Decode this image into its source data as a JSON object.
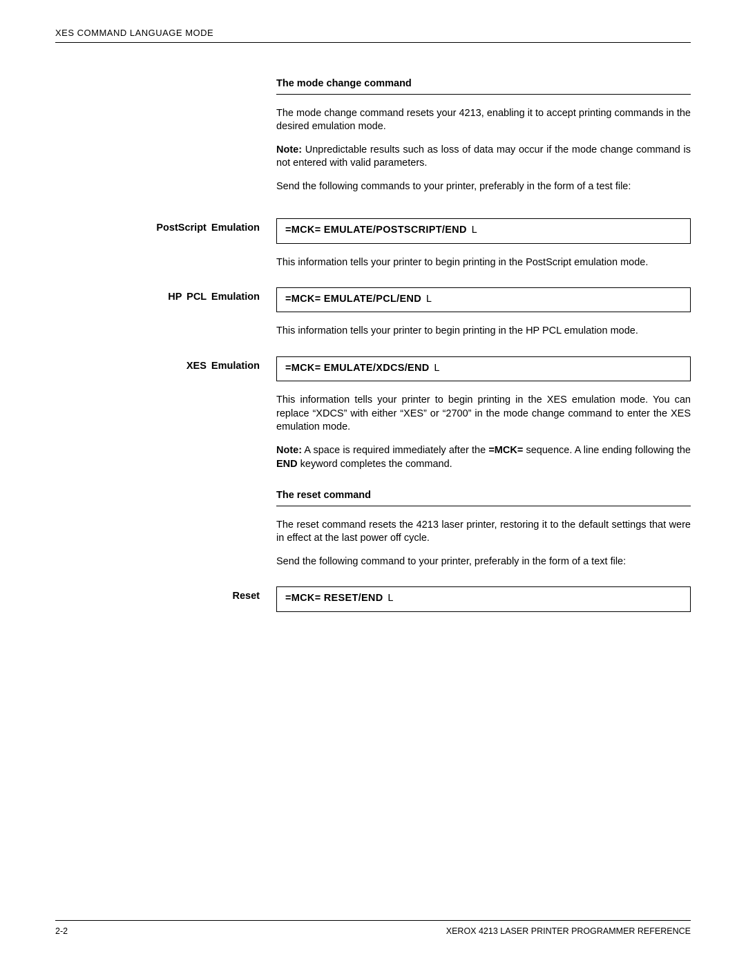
{
  "header": {
    "running_head": "XES COMMAND LANGUAGE MODE"
  },
  "sections": {
    "mode_change": {
      "heading": "The mode change command",
      "p1": "The mode change command resets your 4213, enabling it to accept printing commands in the desired emulation mode.",
      "note_label": "Note:",
      "note_text": "  Unpredictable results such as loss of data may occur if the mode change command is not entered with valid parameters.",
      "p2": "Send the following commands to your printer, preferably in the form of a test file:"
    },
    "postscript": {
      "margin_label": "PostScript   Emulation",
      "cmd": "=MCK= EMULATE/POSTSCRIPT/END",
      "cmd_suffix": "L",
      "p1": "This information tells your printer to begin printing in the PostScript emulation mode."
    },
    "hp_pcl": {
      "margin_label": "HP  PCL  Emulation",
      "cmd": "=MCK= EMULATE/PCL/END",
      "cmd_suffix": "L",
      "p1": "This information tells your printer to begin printing in the HP PCL emulation mode."
    },
    "xes": {
      "margin_label": "XES   Emulation",
      "cmd": "=MCK= EMULATE/XDCS/END",
      "cmd_suffix": "L",
      "p1": "This information tells your printer to begin printing in the XES emulation mode.  You can replace “XDCS” with either “XES” or “2700” in the mode change command to enter the XES emulation mode.",
      "note_label": "Note:",
      "note_pre": "    A space is required immediately after the ",
      "note_bold1": "=MCK=",
      "note_mid": " sequence. A line ending following the ",
      "note_bold2": "END",
      "note_post": " keyword completes the command."
    },
    "reset": {
      "heading": "The reset command",
      "p1": "The reset command resets the 4213 laser printer, restoring it to the default settings that were in effect at the last power off cycle.",
      "p2": "Send the following command to your printer, preferably in the form of a text file:",
      "margin_label": "Reset",
      "cmd": "=MCK= RESET/END",
      "cmd_suffix": "L"
    }
  },
  "footer": {
    "page_number": "2-2",
    "doc_title": "XEROX 4213 LASER PRINTER PROGRAMMER REFERENCE"
  }
}
